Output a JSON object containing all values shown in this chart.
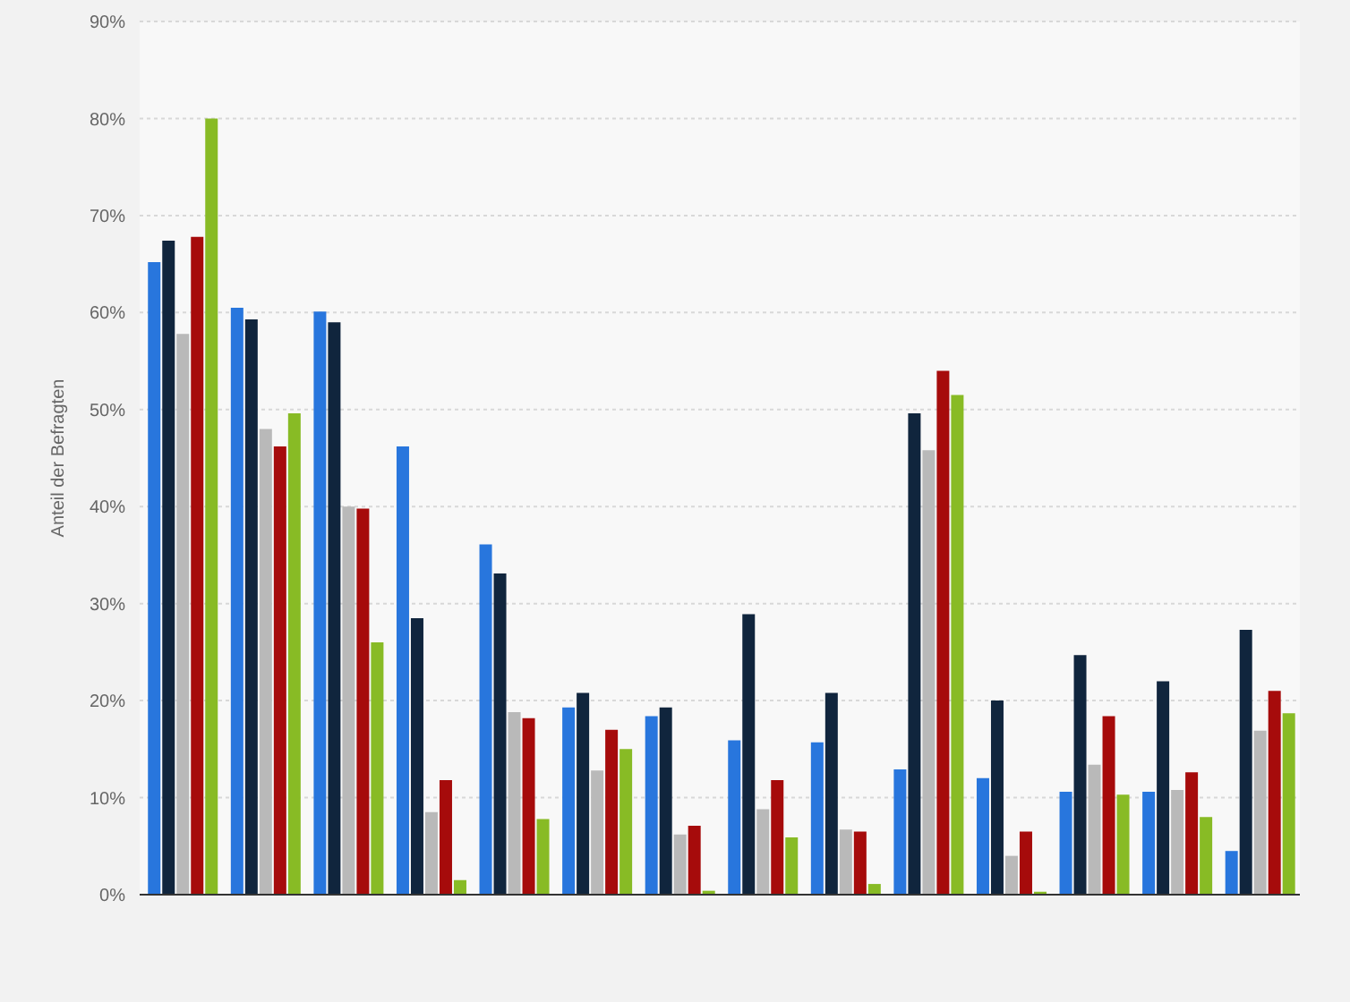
{
  "chart_data": {
    "type": "bar",
    "ylabel": "Anteil der Befragten",
    "categories": [
      null,
      null,
      null,
      null,
      null,
      null,
      null,
      null,
      null,
      null,
      null,
      null,
      null,
      null
    ],
    "series": [
      {
        "color": "#2876dd",
        "values": [
          65.2,
          60.5,
          60.1,
          46.2,
          36.1,
          19.3,
          18.4,
          15.9,
          15.7,
          12.9,
          12,
          10.6,
          10.6,
          4.5
        ]
      },
      {
        "color": "#10253d",
        "values": [
          67.4,
          59.3,
          59,
          28.5,
          33.1,
          20.8,
          19.3,
          28.9,
          20.8,
          49.6,
          20,
          24.7,
          22,
          27.3
        ]
      },
      {
        "color": "#b9b9b9",
        "values": [
          57.8,
          48,
          40,
          8.5,
          18.8,
          12.8,
          6.2,
          8.8,
          6.7,
          45.8,
          4,
          13.4,
          10.8,
          16.9
        ]
      },
      {
        "color": "#a60b0b",
        "values": [
          67.8,
          46.2,
          39.8,
          11.8,
          18.2,
          17,
          7.1,
          11.8,
          6.5,
          54,
          6.5,
          18.4,
          12.6,
          21
        ]
      },
      {
        "color": "#88bb25",
        "values": [
          80,
          49.6,
          26,
          1.5,
          7.8,
          15,
          0.4,
          5.9,
          1.1,
          51.5,
          0.3,
          10.3,
          8,
          18.7
        ]
      }
    ],
    "ylim": [
      0,
      90
    ],
    "yticks": [
      {
        "value": 0,
        "label": "0%"
      },
      {
        "value": 10,
        "label": "10%"
      },
      {
        "value": 20,
        "label": "20%"
      },
      {
        "value": 30,
        "label": "30%"
      },
      {
        "value": 40,
        "label": "40%"
      },
      {
        "value": 50,
        "label": "50%"
      },
      {
        "value": 60,
        "label": "60%"
      },
      {
        "value": 70,
        "label": "70%"
      },
      {
        "value": 80,
        "label": "80%"
      },
      {
        "value": 90,
        "label": "90%"
      }
    ],
    "grid": "y",
    "legend": false
  }
}
